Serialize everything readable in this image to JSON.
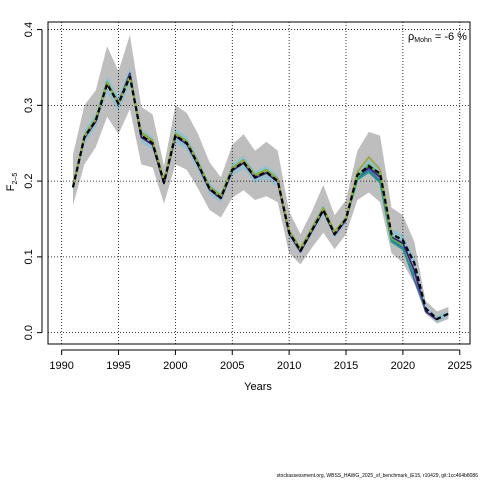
{
  "chart_data": {
    "type": "line",
    "title": "",
    "xlabel": "Years",
    "ylabel": "F2-5",
    "ylabel_main": "F",
    "ylabel_sub": "2–5",
    "xlim": [
      1990,
      2025
    ],
    "ylim": [
      0.0,
      0.4
    ],
    "x_ticks": [
      1990,
      1995,
      2000,
      2005,
      2010,
      2015,
      2020,
      2025
    ],
    "x_tick_labels": [
      "1990",
      "1995",
      "2000",
      "2005",
      "2010",
      "2015",
      "2020",
      "2025"
    ],
    "y_ticks": [
      0.0,
      0.1,
      0.2,
      0.3,
      0.4
    ],
    "y_tick_labels": [
      "0.0",
      "0.1",
      "0.2",
      "0.3",
      "0.4"
    ],
    "grid": true,
    "annotation": {
      "rho_symbol": "ρ",
      "rho_sub": "Mohn",
      "rho_value": " = -6 %"
    },
    "footer": "stockassessment.org, WBSS_HAWG_2025_sf_benchmark_iE15, r10429, git:1cc464b8086",
    "colors": {
      "band_outer": "#bebebe",
      "band_inner": "#87c1d4",
      "base": "#000000"
    },
    "confidence_band": {
      "x": [
        1991,
        1992,
        1993,
        1994,
        1995,
        1996,
        1997,
        1998,
        1999,
        2000,
        2001,
        2002,
        2003,
        2004,
        2005,
        2006,
        2007,
        2008,
        2009,
        2010,
        2011,
        2012,
        2013,
        2014,
        2015,
        2016,
        2017,
        2018,
        2019,
        2020,
        2021,
        2022,
        2023,
        2024
      ],
      "lower": [
        0.168,
        0.222,
        0.245,
        0.285,
        0.262,
        0.295,
        0.222,
        0.218,
        0.17,
        0.222,
        0.215,
        0.19,
        0.162,
        0.152,
        0.178,
        0.188,
        0.175,
        0.18,
        0.172,
        0.105,
        0.09,
        0.112,
        0.132,
        0.11,
        0.13,
        0.175,
        0.185,
        0.172,
        0.105,
        0.092,
        0.065,
        0.025,
        0.012,
        0.018
      ],
      "upper": [
        0.235,
        0.3,
        0.32,
        0.378,
        0.345,
        0.393,
        0.298,
        0.288,
        0.22,
        0.3,
        0.29,
        0.262,
        0.225,
        0.205,
        0.248,
        0.262,
        0.24,
        0.252,
        0.24,
        0.16,
        0.13,
        0.16,
        0.195,
        0.155,
        0.175,
        0.24,
        0.265,
        0.26,
        0.165,
        0.155,
        0.12,
        0.042,
        0.028,
        0.034
      ]
    },
    "series": [
      {
        "color": "#000000",
        "dashed": true,
        "x": [
          1991,
          1992,
          1993,
          1994,
          1995,
          1996,
          1997,
          1998,
          1999,
          2000,
          2001,
          2002,
          2003,
          2004,
          2005,
          2006,
          2007,
          2008,
          2009,
          2010,
          2011,
          2012,
          2013,
          2014,
          2015,
          2016,
          2017,
          2018,
          2019,
          2020,
          2021,
          2022,
          2023,
          2024
        ],
        "values": [
          0.192,
          0.258,
          0.28,
          0.328,
          0.302,
          0.338,
          0.26,
          0.25,
          0.198,
          0.26,
          0.25,
          0.222,
          0.19,
          0.178,
          0.215,
          0.225,
          0.205,
          0.212,
          0.2,
          0.132,
          0.108,
          0.135,
          0.162,
          0.13,
          0.15,
          0.208,
          0.22,
          0.21,
          0.13,
          0.122,
          0.092,
          0.032,
          0.018,
          0.025
        ]
      },
      {
        "color": "#3b1e78",
        "x": [
          1991,
          1992,
          1993,
          1994,
          1995,
          1996,
          1997,
          1998,
          1999,
          2000,
          2001,
          2002,
          2003,
          2004,
          2005,
          2006,
          2007,
          2008,
          2009,
          2010,
          2011,
          2012,
          2013,
          2014,
          2015,
          2016,
          2017,
          2018,
          2019,
          2020,
          2021,
          2022,
          2023
        ],
        "values": [
          0.193,
          0.257,
          0.279,
          0.33,
          0.303,
          0.342,
          0.258,
          0.248,
          0.197,
          0.259,
          0.249,
          0.221,
          0.189,
          0.177,
          0.214,
          0.224,
          0.204,
          0.211,
          0.199,
          0.131,
          0.107,
          0.134,
          0.161,
          0.129,
          0.149,
          0.206,
          0.218,
          0.205,
          0.126,
          0.118,
          0.082,
          0.028,
          0.017
        ]
      },
      {
        "color": "#3e68a5",
        "x": [
          1991,
          1992,
          1993,
          1994,
          1995,
          1996,
          1997,
          1998,
          1999,
          2000,
          2001,
          2002,
          2003,
          2004,
          2005,
          2006,
          2007,
          2008,
          2009,
          2010,
          2011,
          2012,
          2013,
          2014,
          2015,
          2016,
          2017,
          2018,
          2019,
          2020,
          2021,
          2022
        ],
        "values": [
          0.192,
          0.258,
          0.281,
          0.329,
          0.304,
          0.34,
          0.262,
          0.252,
          0.199,
          0.261,
          0.251,
          0.223,
          0.191,
          0.179,
          0.216,
          0.226,
          0.206,
          0.213,
          0.201,
          0.133,
          0.109,
          0.136,
          0.163,
          0.131,
          0.151,
          0.204,
          0.215,
          0.2,
          0.122,
          0.112,
          0.07,
          0.03
        ]
      },
      {
        "color": "#1f9a8a",
        "x": [
          1991,
          1992,
          1993,
          1994,
          1995,
          1996,
          1997,
          1998,
          1999,
          2000,
          2001,
          2002,
          2003,
          2004,
          2005,
          2006,
          2007,
          2008,
          2009,
          2010,
          2011,
          2012,
          2013,
          2014,
          2015,
          2016,
          2017,
          2018,
          2019,
          2020,
          2021
        ],
        "values": [
          0.192,
          0.259,
          0.282,
          0.33,
          0.303,
          0.339,
          0.263,
          0.253,
          0.2,
          0.262,
          0.252,
          0.224,
          0.192,
          0.18,
          0.217,
          0.227,
          0.207,
          0.214,
          0.202,
          0.134,
          0.11,
          0.137,
          0.164,
          0.132,
          0.15,
          0.202,
          0.212,
          0.198,
          0.12,
          0.11,
          0.075
        ]
      },
      {
        "color": "#4cb84a",
        "x": [
          1991,
          1992,
          1993,
          1994,
          1995,
          1996,
          1997,
          1998,
          1999,
          2000,
          2001,
          2002,
          2003,
          2004,
          2005,
          2006,
          2007,
          2008,
          2009,
          2010,
          2011,
          2012,
          2013,
          2014,
          2015,
          2016,
          2017,
          2018,
          2019,
          2020
        ],
        "values": [
          0.191,
          0.26,
          0.283,
          0.331,
          0.302,
          0.338,
          0.264,
          0.254,
          0.201,
          0.263,
          0.253,
          0.225,
          0.193,
          0.181,
          0.218,
          0.228,
          0.208,
          0.215,
          0.203,
          0.135,
          0.111,
          0.138,
          0.165,
          0.133,
          0.151,
          0.205,
          0.222,
          0.208,
          0.124,
          0.115
        ]
      },
      {
        "color": "#a9a43a",
        "x": [
          1991,
          1992,
          1993,
          1994,
          1995,
          1996,
          1997,
          1998,
          1999,
          2000,
          2001,
          2002,
          2003,
          2004,
          2005,
          2006,
          2007,
          2008,
          2009,
          2010,
          2011,
          2012,
          2013,
          2014,
          2015,
          2016,
          2017,
          2018,
          2019
        ],
        "values": [
          0.192,
          0.259,
          0.282,
          0.329,
          0.303,
          0.337,
          0.263,
          0.253,
          0.2,
          0.262,
          0.252,
          0.224,
          0.192,
          0.18,
          0.217,
          0.227,
          0.207,
          0.214,
          0.202,
          0.134,
          0.11,
          0.137,
          0.164,
          0.132,
          0.152,
          0.212,
          0.232,
          0.215,
          0.128
        ]
      }
    ]
  }
}
